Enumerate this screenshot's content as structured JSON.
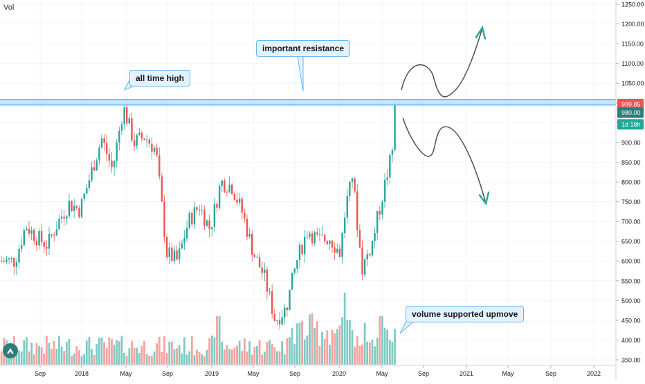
{
  "header": {
    "vol_label": "Vol"
  },
  "price_labels": {
    "current": "999.85",
    "level": "980.00",
    "countdown": "1d 18h"
  },
  "annotations": {
    "resistance": "important resistance",
    "ath": "all time high",
    "volume": "volume supported upmove"
  },
  "colors": {
    "up": "#26a69a",
    "down": "#ef5350",
    "vol_up": "#80cbc4",
    "vol_down": "#f7a29f",
    "resistance": "#64b5f6",
    "countdown_bg": "#26a69a",
    "current_bg": "#ef5350",
    "level_bg": "#2e7d7a"
  },
  "chart_data": {
    "type": "candlestick",
    "title": "",
    "y_axis": {
      "min": 340,
      "max": 1260,
      "ticks": [
        1250,
        1200,
        1150,
        1100,
        1050,
        1000,
        950,
        900,
        850,
        800,
        750,
        700,
        650,
        600,
        550,
        500,
        450,
        400,
        350
      ]
    },
    "x_axis": {
      "ticks": [
        "Sep",
        "2018",
        "May",
        "Sep",
        "2019",
        "May",
        "Sep",
        "2020",
        "May",
        "Sep",
        "2021",
        "May",
        "Sep",
        "2022"
      ]
    },
    "resistance_level": 1000,
    "price_path": [
      [
        "2017-07",
        600
      ],
      [
        "2017-08",
        690
      ],
      [
        "2017-09",
        660
      ],
      [
        "2017-10",
        640
      ],
      [
        "2017-11",
        700
      ],
      [
        "2017-12",
        745
      ],
      [
        "2018-01",
        730
      ],
      [
        "2018-02",
        820
      ],
      [
        "2018-03",
        910
      ],
      [
        "2018-04",
        830
      ],
      [
        "2018-05",
        990
      ],
      [
        "2018-06",
        900
      ],
      [
        "2018-07",
        915
      ],
      [
        "2018-08",
        880
      ],
      [
        "2018-09",
        620
      ],
      [
        "2018-10",
        600
      ],
      [
        "2018-11",
        700
      ],
      [
        "2018-12",
        740
      ],
      [
        "2019-01",
        680
      ],
      [
        "2019-02",
        800
      ],
      [
        "2019-03",
        790
      ],
      [
        "2019-04",
        720
      ],
      [
        "2019-05",
        620
      ],
      [
        "2019-06",
        560
      ],
      [
        "2019-07",
        450
      ],
      [
        "2019-08",
        480
      ],
      [
        "2019-09",
        600
      ],
      [
        "2019-10",
        680
      ],
      [
        "2019-11",
        650
      ],
      [
        "2019-12",
        660
      ],
      [
        "2020-01",
        620
      ],
      [
        "2020-02",
        850
      ],
      [
        "2020-03",
        580
      ],
      [
        "2020-04",
        650
      ],
      [
        "2020-05",
        780
      ],
      [
        "2020-06",
        900
      ],
      [
        "2020-07",
        999.85
      ]
    ]
  }
}
